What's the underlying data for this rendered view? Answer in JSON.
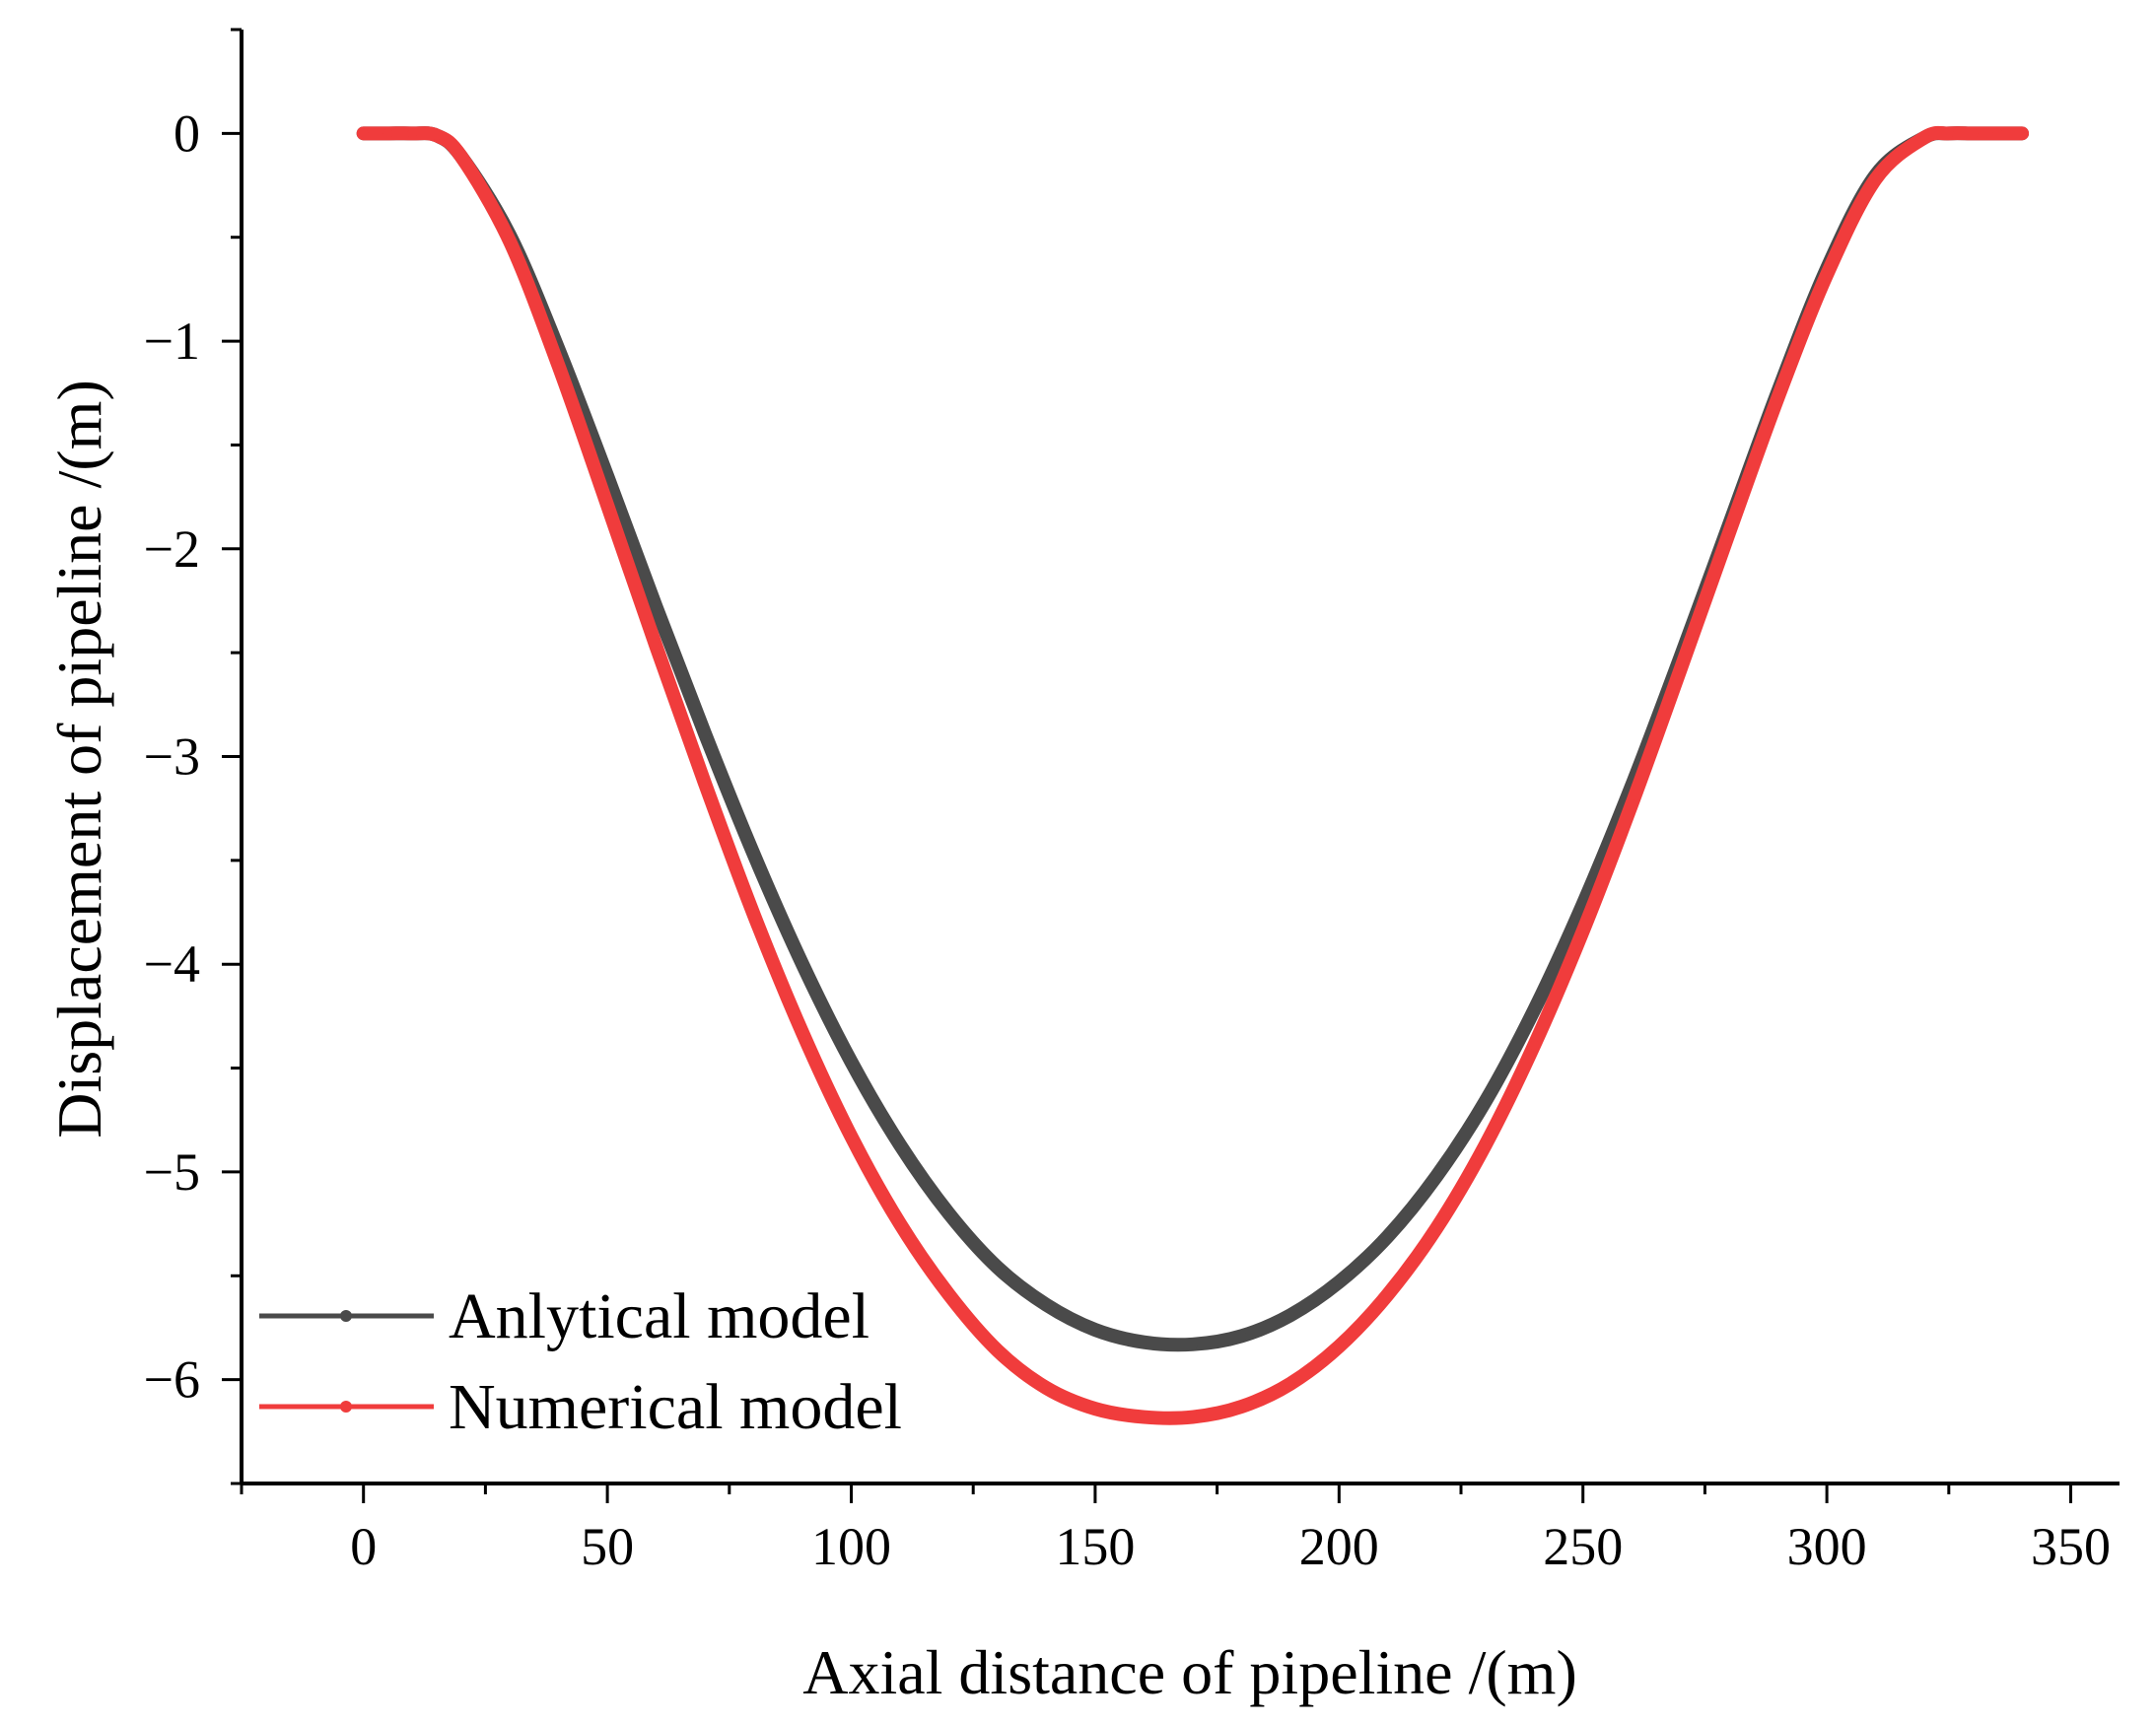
{
  "chart_data": {
    "type": "line",
    "title": "",
    "xlabel": "Axial distance of pipeline /(m)",
    "ylabel": "Displacement of pipeline /(m)",
    "xlim": [
      -25,
      360
    ],
    "ylim": [
      -6.5,
      0.5
    ],
    "xticks": [
      0,
      50,
      100,
      150,
      200,
      250,
      300,
      350
    ],
    "xtick_labels": [
      "0",
      "50",
      "100",
      "150",
      "200",
      "250",
      "300",
      "350"
    ],
    "yticks": [
      0,
      -1,
      -2,
      -3,
      -4,
      -5,
      -6
    ],
    "ytick_labels": [
      "0",
      "−1",
      "−2",
      "−3",
      "−4",
      "−5",
      "−6"
    ],
    "grid": false,
    "legend_position": "bottom-left",
    "series": [
      {
        "name": "Anlytical model",
        "color": "#4a4a4a",
        "x": [
          0,
          5,
          10,
          15,
          20,
          30,
          40,
          50,
          60,
          70,
          80,
          90,
          100,
          110,
          120,
          130,
          140,
          150,
          160,
          170,
          180,
          190,
          200,
          210,
          220,
          230,
          240,
          250,
          260,
          270,
          280,
          290,
          300,
          310,
          320,
          325,
          330,
          335,
          340
        ],
        "values": [
          0,
          0,
          0,
          -0.01,
          -0.11,
          -0.49,
          -1.04,
          -1.65,
          -2.28,
          -2.89,
          -3.47,
          -4.0,
          -4.47,
          -4.87,
          -5.2,
          -5.46,
          -5.64,
          -5.76,
          -5.82,
          -5.83,
          -5.79,
          -5.69,
          -5.53,
          -5.31,
          -5.02,
          -4.66,
          -4.22,
          -3.71,
          -3.14,
          -2.52,
          -1.88,
          -1.24,
          -0.65,
          -0.2,
          -0.02,
          0,
          0,
          0,
          0
        ]
      },
      {
        "name": "Numerical model",
        "color": "#f03c3c",
        "x": [
          0,
          5,
          10,
          15,
          20,
          30,
          40,
          50,
          60,
          70,
          80,
          90,
          100,
          110,
          120,
          130,
          140,
          150,
          160,
          170,
          180,
          190,
          200,
          210,
          220,
          230,
          240,
          250,
          260,
          270,
          280,
          290,
          300,
          310,
          320,
          325,
          330,
          335,
          340
        ],
        "values": [
          0,
          0,
          0,
          -0.01,
          -0.11,
          -0.52,
          -1.12,
          -1.79,
          -2.47,
          -3.13,
          -3.76,
          -4.33,
          -4.83,
          -5.25,
          -5.59,
          -5.86,
          -6.04,
          -6.14,
          -6.18,
          -6.18,
          -6.13,
          -6.02,
          -5.84,
          -5.59,
          -5.27,
          -4.87,
          -4.39,
          -3.84,
          -3.23,
          -2.58,
          -1.92,
          -1.27,
          -0.68,
          -0.22,
          -0.02,
          0,
          0,
          0,
          0
        ]
      }
    ]
  }
}
